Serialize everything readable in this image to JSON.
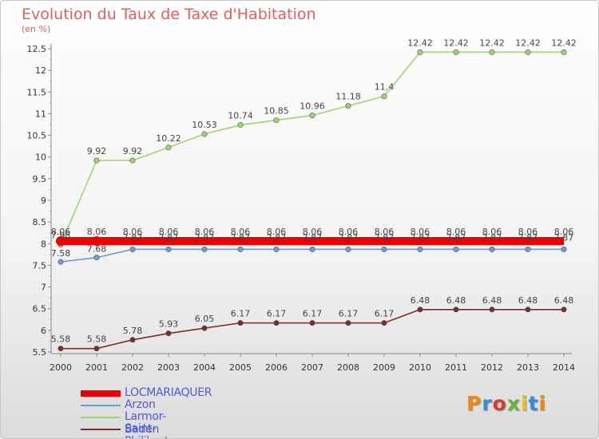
{
  "title": "Evolution du Taux de Taxe d'Habitation",
  "subtitle": "(en %)",
  "logo_text": "Proxiti",
  "logo_colors": [
    "#e58a1f",
    "#2f8fdc",
    "#d43c2a",
    "#6ab42e",
    "#e7c21e",
    "#2f8fdc",
    "#e58a1f"
  ],
  "chart_data": {
    "type": "line",
    "x": [
      "2000",
      "2001",
      "2002",
      "2003",
      "2004",
      "2005",
      "2006",
      "2007",
      "2008",
      "2009",
      "2010",
      "2011",
      "2012",
      "2013",
      "2014"
    ],
    "ylim": [
      5.5,
      12.5
    ],
    "yticks": [
      "5.5",
      "6",
      "6.5",
      "7",
      "7.5",
      "8",
      "8.5",
      "9",
      "9.5",
      "10",
      "10.5",
      "11",
      "11.5",
      "12",
      "12.5"
    ],
    "grid": false,
    "legend_position": "bottom-left",
    "series": [
      {
        "name": "LOCMARIAQUER",
        "color": "#ee0000",
        "values": [
          8.06,
          8.06,
          8.06,
          8.06,
          8.06,
          8.06,
          8.06,
          8.06,
          8.06,
          8.06,
          8.06,
          8.06,
          8.06,
          8.06,
          8.06
        ],
        "labels": [
          "8.06",
          "8.06",
          "8.06",
          "8.06",
          "8.06",
          "8.06",
          "8.06",
          "8.06",
          "8.06",
          "8.06",
          "8.06",
          "8.06",
          "8.06",
          "8.06",
          "8.06"
        ]
      },
      {
        "name": "Arzon",
        "color": "#6a9fd0",
        "values": [
          7.58,
          7.68,
          7.87,
          7.87,
          7.87,
          7.87,
          7.87,
          7.87,
          7.87,
          7.87,
          7.87,
          7.87,
          7.87,
          7.87,
          7.87
        ],
        "labels": [
          "7.58",
          "7.68",
          "7.87",
          "7.87",
          "7.87",
          "7.87",
          "7.87",
          "7.87",
          "7.87",
          "7.87",
          "7.87",
          "7.87",
          "7.87",
          "7.87",
          "7.87"
        ]
      },
      {
        "name": "Larmor-Baden",
        "color": "#9cd86e",
        "values": [
          7.98,
          9.92,
          9.92,
          10.22,
          10.53,
          10.74,
          10.85,
          10.96,
          11.18,
          11.4,
          12.42,
          12.42,
          12.42,
          12.42,
          12.42
        ],
        "labels": [
          "7.98",
          "9.92",
          "9.92",
          "10.22",
          "10.53",
          "10.74",
          "10.85",
          "10.96",
          "11.18",
          "11.4",
          "12.42",
          "12.42",
          "12.42",
          "12.42",
          "12.42"
        ]
      },
      {
        "name": "Saint-Philibert",
        "color": "#7a2c2c",
        "values": [
          5.58,
          5.58,
          5.78,
          5.93,
          6.05,
          6.17,
          6.17,
          6.17,
          6.17,
          6.17,
          6.48,
          6.48,
          6.48,
          6.48,
          6.48
        ],
        "labels": [
          "5.58",
          "5.58",
          "5.78",
          "5.93",
          "6.05",
          "6.17",
          "6.17",
          "6.17",
          "6.17",
          "6.17",
          "6.48",
          "6.48",
          "6.48",
          "6.48",
          "6.48"
        ]
      }
    ]
  }
}
